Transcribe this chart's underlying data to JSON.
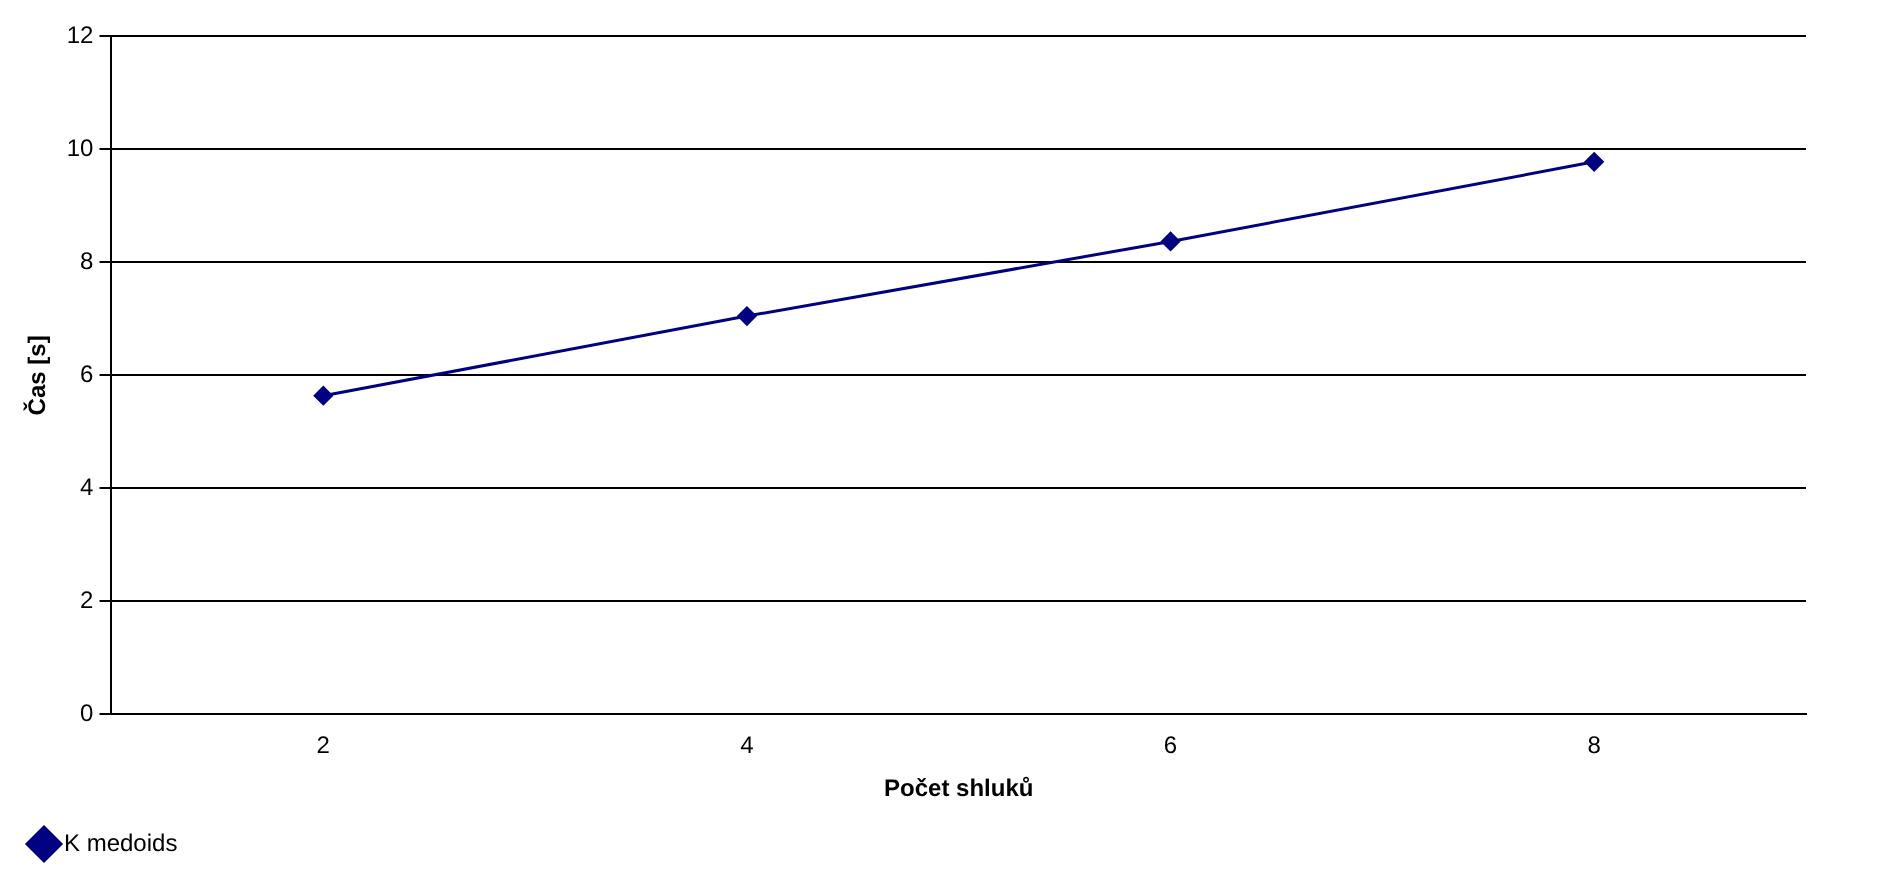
{
  "chart_data": {
    "type": "line",
    "xlabel": "Počet shluků",
    "ylabel": "Čas [s]",
    "categories": [
      "2",
      "4",
      "6",
      "8"
    ],
    "series": [
      {
        "name": "K medoids",
        "color": "#000080",
        "values": [
          5.64,
          7.05,
          8.37,
          9.78
        ]
      }
    ],
    "ylim": [
      0,
      12
    ],
    "yticks": [
      0,
      2,
      4,
      6,
      8,
      10,
      12
    ],
    "grid": "y",
    "legend": "bottom left",
    "marker": "diamond",
    "line_style": "solid"
  }
}
